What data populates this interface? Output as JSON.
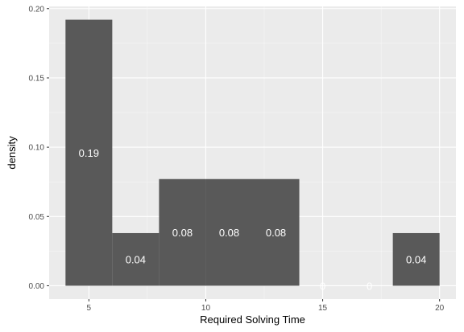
{
  "chart_data": {
    "type": "bar",
    "style": "histogram",
    "xlabel": "Required Solving Time",
    "ylabel": "density",
    "xlim": [
      3.3,
      20.7
    ],
    "ylim": [
      -0.0096,
      0.2016
    ],
    "x_ticks": [
      5,
      10,
      15,
      20
    ],
    "y_ticks": [
      0.0,
      0.05,
      0.1,
      0.15,
      0.2
    ],
    "x_tick_labels": [
      "5",
      "10",
      "15",
      "20"
    ],
    "y_tick_labels": [
      "0.00",
      "0.05",
      "0.10",
      "0.15",
      "0.20"
    ],
    "grid": true,
    "bins": [
      {
        "x0": 4,
        "x1": 6,
        "density": 0.192,
        "label": "0.19"
      },
      {
        "x0": 6,
        "x1": 8,
        "density": 0.038,
        "label": "0.04"
      },
      {
        "x0": 8,
        "x1": 10,
        "density": 0.077,
        "label": "0.08"
      },
      {
        "x0": 10,
        "x1": 12,
        "density": 0.077,
        "label": "0.08"
      },
      {
        "x0": 12,
        "x1": 14,
        "density": 0.077,
        "label": "0.08"
      },
      {
        "x0": 14,
        "x1": 16,
        "density": 0,
        "label": "0"
      },
      {
        "x0": 16,
        "x1": 18,
        "density": 0,
        "label": "0"
      },
      {
        "x0": 18,
        "x1": 20,
        "density": 0.038,
        "label": "0.04"
      }
    ],
    "colors": {
      "panel": "#ebebeb",
      "grid_major": "#ffffff",
      "bar_fill": "#595959",
      "label_text": "#ffffff",
      "tick_text": "#4d4d4d"
    }
  }
}
